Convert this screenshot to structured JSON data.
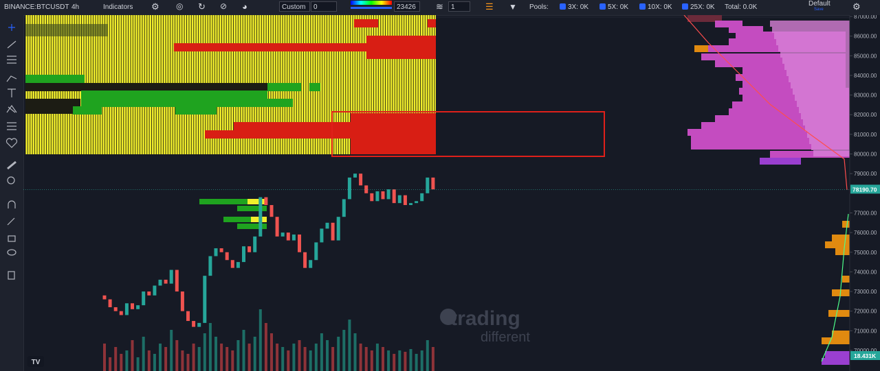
{
  "toolbar": {
    "symbol": "BINANCE:BTCUSDT",
    "interval": "4h",
    "indicators": "Indicators",
    "mode": "Custom",
    "mode_value": "0",
    "range_value": "23426",
    "layers": "1",
    "pools": "Pools:",
    "pool_3x": "3X: 0K",
    "pool_5x": "5X: 0K",
    "pool_10x": "10X: 0K",
    "pool_25x": "25X: 0K",
    "total": "Total: 0.0K",
    "layout": "Default",
    "save": "Save"
  },
  "watermark": {
    "line1": "trading",
    "line2": "different"
  },
  "price_axis": {
    "ticks": [
      {
        "value": 87000,
        "label": "87000.00"
      },
      {
        "value": 86000,
        "label": "86000.00"
      },
      {
        "value": 85000,
        "label": "85000.00"
      },
      {
        "value": 84000,
        "label": "84000.00"
      },
      {
        "value": 83000,
        "label": "83000.00"
      },
      {
        "value": 82000,
        "label": "82000.00"
      },
      {
        "value": 81000,
        "label": "81000.00"
      },
      {
        "value": 80000,
        "label": "80000.00"
      },
      {
        "value": 79000,
        "label": "79000.00"
      },
      {
        "value": 77000,
        "label": "77000.00"
      },
      {
        "value": 76000,
        "label": "76000.00"
      },
      {
        "value": 75000,
        "label": "75000.00"
      },
      {
        "value": 74000,
        "label": "74000.00"
      },
      {
        "value": 73000,
        "label": "73000.00"
      },
      {
        "value": 72000,
        "label": "72000.00"
      },
      {
        "value": 71000,
        "label": "71000.00"
      },
      {
        "value": 70000,
        "label": "70000.00"
      }
    ],
    "range": [
      87000,
      70000
    ],
    "last_price": {
      "value": 78190.7,
      "label": "78190.70"
    },
    "volume_label": "18.431K"
  },
  "candles": {
    "open": [
      72800,
      72600,
      72200,
      72000,
      71800,
      72400,
      72100,
      72300,
      73000,
      72800,
      73300,
      73600,
      73400,
      74100,
      73000,
      72000,
      71500,
      71200,
      71400,
      73800,
      74800,
      75200,
      75000,
      74600,
      74200,
      74500,
      75300,
      75000,
      75800,
      77800,
      77400,
      76800,
      75800,
      76000,
      75600,
      75900,
      75000,
      74200,
      74600,
      75500,
      76200,
      76500,
      75600,
      76800,
      77700,
      78800,
      79000,
      78400,
      78000,
      77600,
      78100,
      77700,
      78200,
      77500,
      77900,
      77400,
      77500,
      77600,
      78000,
      78800
    ],
    "close": [
      72600,
      72200,
      72000,
      71800,
      72400,
      72100,
      72300,
      73000,
      72800,
      73300,
      73600,
      73400,
      74100,
      73000,
      72000,
      71500,
      71200,
      71400,
      73800,
      74800,
      75200,
      75000,
      74600,
      74200,
      74500,
      75300,
      75000,
      75800,
      77800,
      77400,
      76800,
      75800,
      76000,
      75600,
      75900,
      75000,
      74200,
      74600,
      75500,
      76200,
      76500,
      75600,
      76800,
      77700,
      78800,
      79000,
      78400,
      78000,
      77600,
      78100,
      77700,
      78200,
      77500,
      77900,
      77400,
      77500,
      77600,
      78000,
      78800,
      78200
    ],
    "volume": [
      40,
      20,
      35,
      25,
      30,
      45,
      20,
      50,
      30,
      25,
      40,
      35,
      60,
      45,
      30,
      25,
      40,
      35,
      55,
      70,
      50,
      40,
      35,
      30,
      45,
      60,
      40,
      50,
      90,
      70,
      55,
      40,
      35,
      30,
      40,
      45,
      35,
      30,
      40,
      55,
      45,
      35,
      50,
      60,
      75,
      55,
      40,
      35,
      30,
      40,
      35,
      30,
      25,
      30,
      28,
      32,
      25,
      30,
      45,
      35
    ]
  }
}
